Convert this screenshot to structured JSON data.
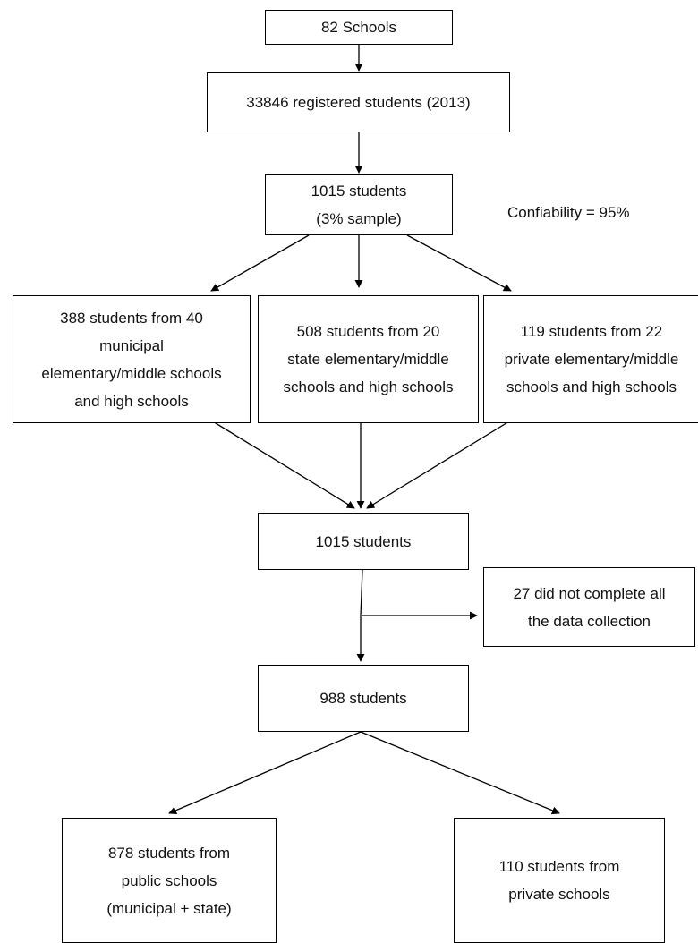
{
  "nodes": {
    "schools": [
      "82 Schools"
    ],
    "registered": [
      "33846 registered students (2013)"
    ],
    "sample": [
      "1015 students",
      "(3% sample)"
    ],
    "municipal": [
      "388 students from 40",
      "municipal",
      "elementary/middle schools",
      "and high schools"
    ],
    "state": [
      "508 students from 20",
      "state elementary/middle",
      "schools and high schools"
    ],
    "private": [
      "119 students from 22",
      "private elementary/middle",
      "schools and high schools"
    ],
    "merged": [
      "1015 students"
    ],
    "excluded": [
      "27 did not complete all",
      "the data collection"
    ],
    "final": [
      "988 students"
    ],
    "public_final": [
      "878 students from",
      "public schools",
      "(municipal + state)"
    ],
    "private_final": [
      "110 students from",
      "private schools"
    ]
  },
  "note": "Confiability = 95%"
}
